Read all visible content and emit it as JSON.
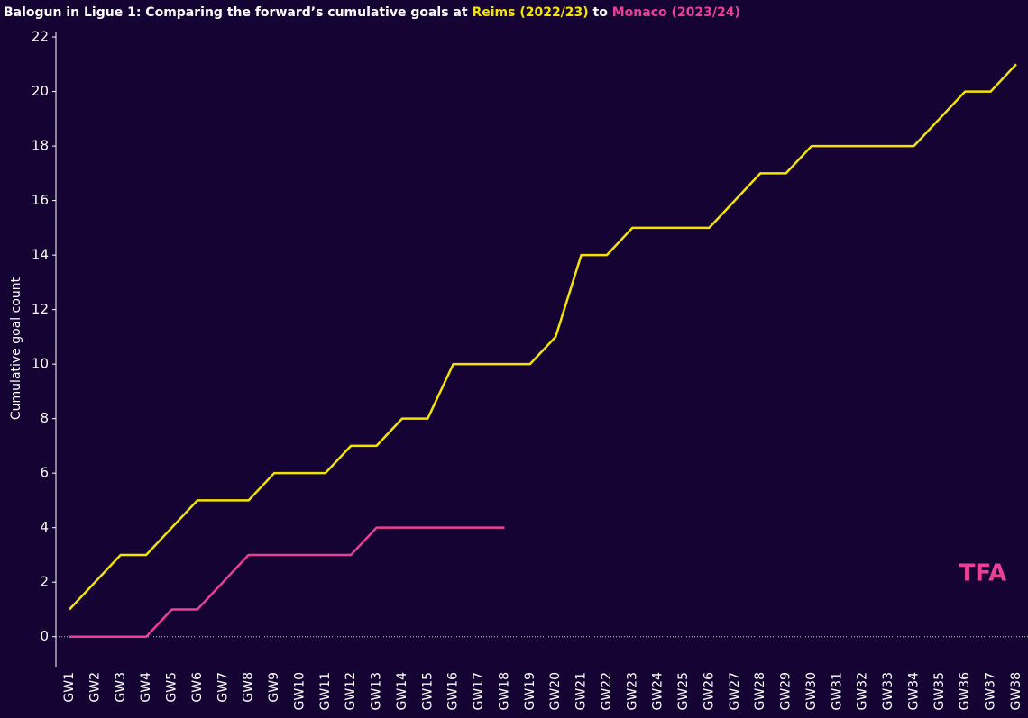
{
  "chart_data": {
    "type": "line",
    "title": [
      {
        "text": "Balogun in Ligue 1: Comparing the forward’s cumulative goals at ",
        "color": "#ffffff"
      },
      {
        "text": "Reims (2022/23)",
        "color": "#f5e400"
      },
      {
        "text": " to ",
        "color": "#ffffff"
      },
      {
        "text": "Monaco (2023/24)",
        "color": "#ec3f96"
      }
    ],
    "y_label": "Cumulative goal count",
    "watermark": "TFA",
    "categories": [
      "GW1",
      "GW2",
      "GW3",
      "GW4",
      "GW5",
      "GW6",
      "GW7",
      "GW8",
      "GW9",
      "GW10",
      "GW11",
      "GW12",
      "GW13",
      "GW14",
      "GW15",
      "GW16",
      "GW17",
      "GW18",
      "GW19",
      "GW20",
      "GW21",
      "GW22",
      "GW23",
      "GW24",
      "GW25",
      "GW26",
      "GW27",
      "GW28",
      "GW29",
      "GW30",
      "GW31",
      "GW32",
      "GW33",
      "GW34",
      "GW35",
      "GW36",
      "GW37",
      "GW38"
    ],
    "series": [
      {
        "name": "Reims (2022/23)",
        "color": "#f5e400",
        "values": [
          1,
          2,
          3,
          3,
          4,
          5,
          5,
          5,
          6,
          6,
          6,
          7,
          7,
          8,
          8,
          10,
          10,
          10,
          10,
          11,
          14,
          14,
          15,
          15,
          15,
          15,
          16,
          17,
          17,
          18,
          18,
          18,
          18,
          18,
          19,
          20,
          20,
          21
        ]
      },
      {
        "name": "Monaco (2023/24)",
        "color": "#ec3f96",
        "values": [
          0,
          0,
          0,
          0,
          1,
          1,
          2,
          3,
          3,
          3,
          3,
          3,
          4,
          4,
          4,
          4,
          4,
          4,
          null,
          null,
          null,
          null,
          null,
          null,
          null,
          null,
          null,
          null,
          null,
          null,
          null,
          null,
          null,
          null,
          null,
          null,
          null,
          null
        ]
      }
    ],
    "ylim": [
      -1.1,
      22.2
    ],
    "yticks": [
      0,
      2,
      4,
      6,
      8,
      10,
      12,
      14,
      16,
      18,
      20,
      22
    ],
    "zero_line": true
  }
}
